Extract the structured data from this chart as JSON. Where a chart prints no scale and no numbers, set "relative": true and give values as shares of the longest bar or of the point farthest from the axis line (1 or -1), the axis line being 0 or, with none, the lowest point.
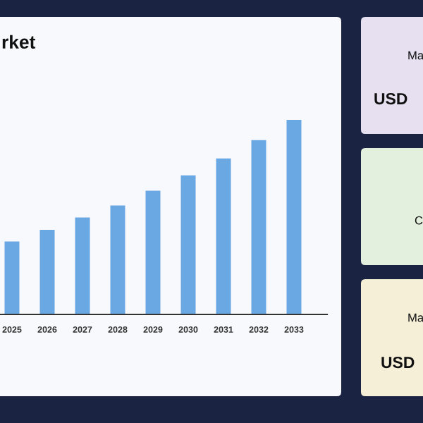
{
  "chart_data": [
    {
      "type": "bar",
      "title": "rket",
      "categories": [
        "2025",
        "2026",
        "2027",
        "2028",
        "2029",
        "2030",
        "2031",
        "2032",
        "2033"
      ],
      "values": [
        0.375,
        0.435,
        0.498,
        0.56,
        0.636,
        0.715,
        0.802,
        0.896,
        1
      ],
      "color": "#6aa8e4",
      "relative": true,
      "grid": false,
      "legend": false
    },
    {
      "type": "other",
      "annotations": [
        "Ma",
        "USD",
        "C",
        "Ma",
        "USD"
      ]
    }
  ]
}
